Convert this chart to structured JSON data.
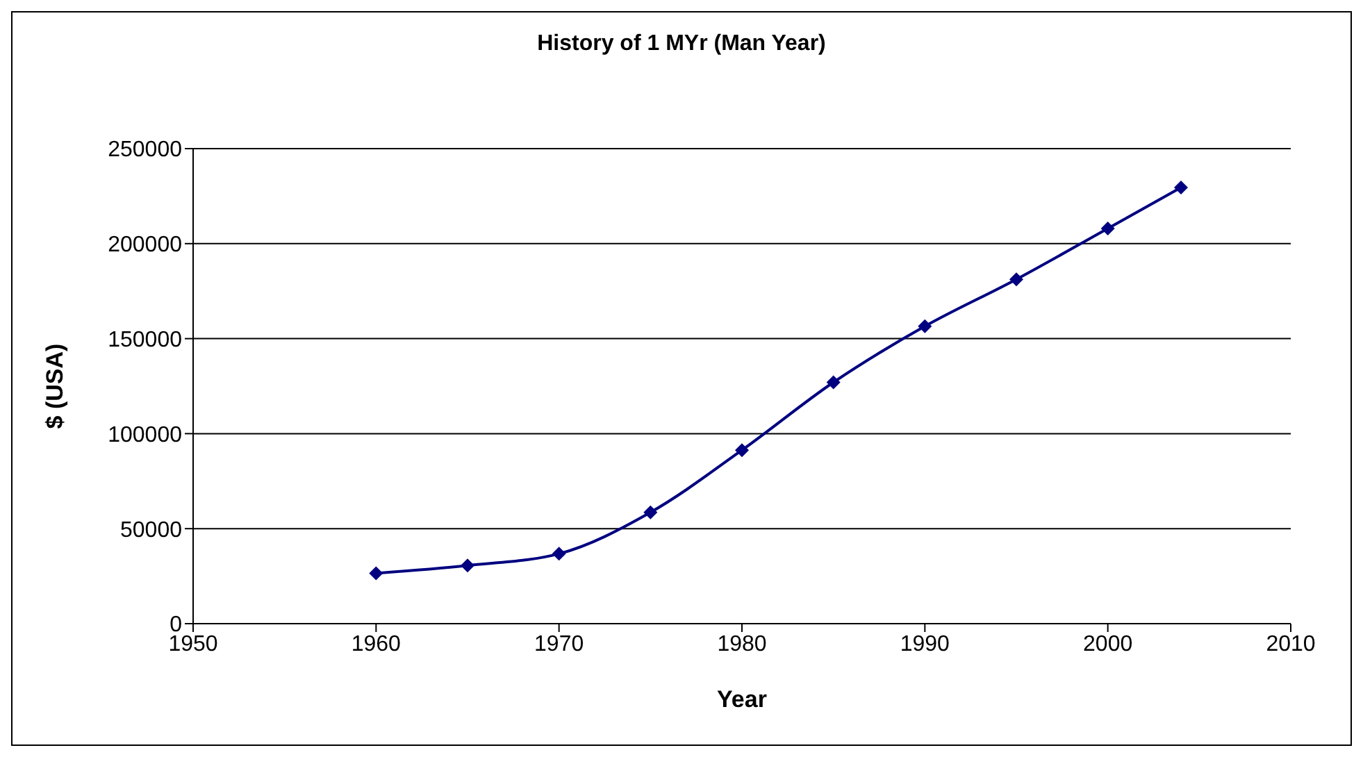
{
  "chart_data": {
    "type": "line",
    "title": "History of 1 MYr (Man Year)",
    "xlabel": "Year",
    "ylabel": "$ (USA)",
    "x": [
      1960,
      1965,
      1970,
      1975,
      1980,
      1985,
      1990,
      1995,
      2000,
      2004
    ],
    "series": [
      {
        "color": "#000080",
        "values": [
          26500,
          30600,
          36800,
          58600,
          91300,
          127000,
          156500,
          181200,
          208000,
          229500
        ]
      }
    ],
    "xlim": [
      1950,
      2010
    ],
    "xticks": [
      1950,
      1960,
      1970,
      1980,
      1990,
      2000,
      2010
    ],
    "ylim": [
      0,
      250000
    ],
    "yticks": [
      0,
      50000,
      100000,
      150000,
      200000,
      250000
    ],
    "grid": "y",
    "marker": "diamond",
    "line_style": "solid"
  }
}
